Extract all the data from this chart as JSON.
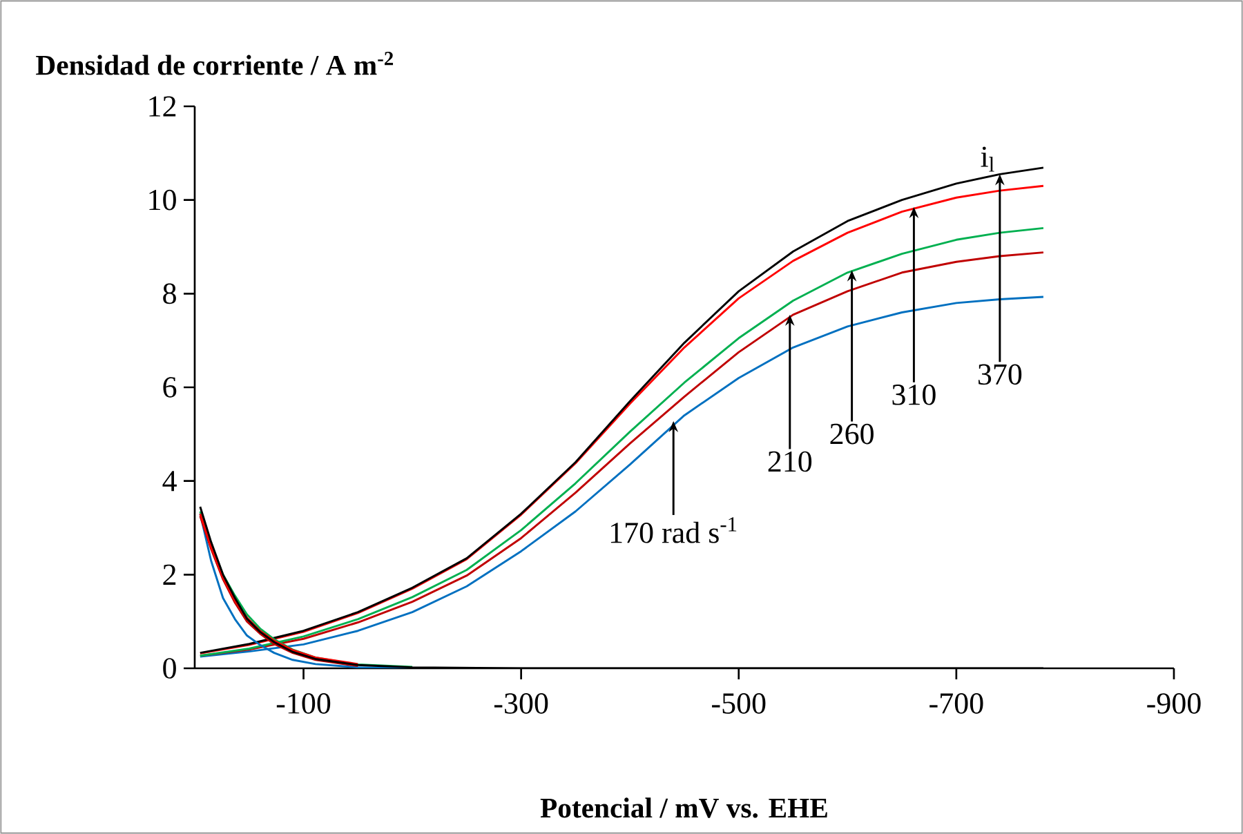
{
  "chart_data": {
    "type": "line",
    "ylabel": "Densidad de corriente / A m$^{-2}$",
    "xlabel": "Potencial / mV vs. EHE",
    "xlim": [
      0,
      -900
    ],
    "xticks": [
      -100,
      -300,
      -500,
      -700,
      -900
    ],
    "ylim": [
      0,
      12
    ],
    "yticks": [
      0,
      2,
      4,
      6,
      8,
      10,
      12
    ],
    "grid": false,
    "marker": "none",
    "line_style": "solid",
    "series": [
      {
        "color": "#0070c0",
        "x": [
          -5,
          -50,
          -100,
          -150,
          -200,
          -250,
          -300,
          -350,
          -400,
          -450,
          -500,
          -550,
          -600,
          -650,
          -700,
          -740,
          -780
        ],
        "values": [
          0.25,
          0.36,
          0.51,
          0.8,
          1.2,
          1.75,
          2.5,
          3.35,
          4.35,
          5.4,
          6.2,
          6.85,
          7.3,
          7.6,
          7.8,
          7.88,
          7.93
        ]
      },
      {
        "color": "#c00000",
        "x": [
          -5,
          -50,
          -100,
          -150,
          -200,
          -250,
          -300,
          -350,
          -400,
          -450,
          -500,
          -550,
          -600,
          -650,
          -700,
          -740,
          -780
        ],
        "values": [
          0.27,
          0.4,
          0.63,
          0.98,
          1.42,
          1.98,
          2.78,
          3.75,
          4.8,
          5.8,
          6.75,
          7.55,
          8.05,
          8.45,
          8.68,
          8.8,
          8.88
        ]
      },
      {
        "color": "#00b050",
        "x": [
          -5,
          -50,
          -100,
          -150,
          -200,
          -250,
          -300,
          -350,
          -400,
          -450,
          -500,
          -550,
          -600,
          -650,
          -700,
          -740,
          -780
        ],
        "values": [
          0.27,
          0.42,
          0.68,
          1.05,
          1.52,
          2.1,
          2.95,
          3.95,
          5.05,
          6.1,
          7.05,
          7.85,
          8.45,
          8.85,
          9.15,
          9.3,
          9.4
        ]
      },
      {
        "color": "#ff0000",
        "x": [
          -5,
          -50,
          -100,
          -150,
          -200,
          -250,
          -300,
          -350,
          -400,
          -450,
          -500,
          -550,
          -600,
          -650,
          -700,
          -740,
          -780
        ],
        "values": [
          0.32,
          0.5,
          0.78,
          1.18,
          1.7,
          2.33,
          3.28,
          4.38,
          5.65,
          6.85,
          7.9,
          8.7,
          9.3,
          9.75,
          10.05,
          10.2,
          10.3
        ]
      },
      {
        "color": "#000000",
        "x": [
          -5,
          -50,
          -100,
          -150,
          -200,
          -250,
          -300,
          -350,
          -400,
          -450,
          -500,
          -550,
          -600,
          -650,
          -700,
          -740,
          -780
        ],
        "values": [
          0.33,
          0.52,
          0.8,
          1.2,
          1.72,
          2.35,
          3.3,
          4.4,
          5.7,
          6.95,
          8.05,
          8.9,
          9.55,
          10.0,
          10.35,
          10.55,
          10.69
        ]
      },
      {
        "color": "#0070c0",
        "x": [
          -5,
          -15,
          -26,
          -37,
          -48,
          -60,
          -73,
          -90,
          -111,
          -150,
          -200
        ],
        "values": [
          3.3,
          2.3,
          1.5,
          1.05,
          0.7,
          0.5,
          0.33,
          0.18,
          0.09,
          0.02,
          0
        ]
      },
      {
        "color": "#c00000",
        "x": [
          -5,
          -15,
          -26,
          -37,
          -48,
          -60,
          -73,
          -90,
          -111,
          -150
        ],
        "values": [
          3.25,
          2.55,
          1.9,
          1.4,
          1.0,
          0.74,
          0.52,
          0.33,
          0.18,
          0.05
        ]
      },
      {
        "color": "#00b050",
        "x": [
          -5,
          -15,
          -26,
          -37,
          -48,
          -60,
          -73,
          -90,
          -111,
          -150,
          -200
        ],
        "values": [
          3.35,
          2.65,
          2.0,
          1.55,
          1.15,
          0.85,
          0.62,
          0.4,
          0.23,
          0.08,
          0.03
        ]
      },
      {
        "color": "#ff0000",
        "x": [
          -5,
          -15,
          -26,
          -37,
          -48,
          -60,
          -73,
          -90,
          -111,
          -150
        ],
        "values": [
          3.3,
          2.6,
          1.95,
          1.45,
          1.08,
          0.8,
          0.59,
          0.39,
          0.23,
          0.09
        ]
      },
      {
        "color": "#000000",
        "x": [
          -5,
          -15,
          -26,
          -37,
          -48,
          -60,
          -73,
          -90,
          -111,
          -150,
          -200,
          -300,
          -780
        ],
        "values": [
          3.45,
          2.7,
          2.0,
          1.5,
          1.06,
          0.78,
          0.56,
          0.35,
          0.2,
          0.07,
          0.02,
          0,
          0
        ]
      }
    ],
    "annotations": [
      {
        "text": "170 rad s$^{-1}$",
        "x": -440,
        "y": 5.28
      },
      {
        "text": "210",
        "x": -547,
        "y": 7.55
      },
      {
        "text": "260",
        "x": -604,
        "y": 8.5
      },
      {
        "text": "310",
        "x": -661,
        "y": 9.85
      },
      {
        "text": "370",
        "x": -740,
        "y": 10.55
      },
      "i$_{l}$"
    ]
  }
}
